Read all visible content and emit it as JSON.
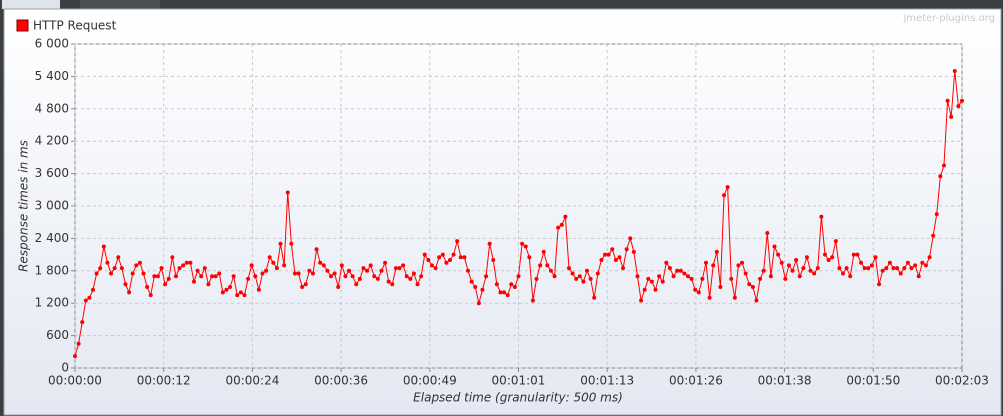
{
  "chart_data": {
    "type": "line",
    "legend": "HTTP Request",
    "watermark": "jmeter-plugins.org",
    "xlabel": "Elapsed time (granularity: 500 ms)",
    "ylabel": "Response times in ms",
    "grid": true,
    "legend_position": "top-left",
    "x": [
      0,
      0.5,
      1,
      1.5,
      2,
      2.5,
      3,
      3.5,
      4,
      4.5,
      5,
      5.5,
      6,
      6.5,
      7,
      7.5,
      8,
      8.5,
      9,
      9.5,
      10,
      10.5,
      11,
      11.5,
      12,
      12.5,
      13,
      13.5,
      14,
      14.5,
      15,
      15.5,
      16,
      16.5,
      17,
      17.5,
      18,
      18.5,
      19,
      19.5,
      20,
      20.5,
      21,
      21.5,
      22,
      22.5,
      23,
      23.5,
      24,
      24.5,
      25,
      25.5,
      26,
      26.5,
      27,
      27.5,
      28,
      28.5,
      29,
      29.5,
      30,
      30.5,
      31,
      31.5,
      32,
      32.5,
      33,
      33.5,
      34,
      34.5,
      35,
      35.5,
      36,
      36.5,
      37,
      37.5,
      38,
      38.5,
      39,
      39.5,
      40,
      40.5,
      41,
      41.5,
      42,
      42.5,
      43,
      43.5,
      44,
      44.5,
      45,
      45.5,
      46,
      46.5,
      47,
      47.5,
      48,
      48.5,
      49,
      49.5,
      50,
      50.5,
      51,
      51.5,
      52,
      52.5,
      53,
      53.5,
      54,
      54.5,
      55,
      55.5,
      56,
      56.5,
      57,
      57.5,
      58,
      58.5,
      59,
      59.5,
      60,
      60.5,
      61,
      61.5,
      62,
      62.5,
      63,
      63.5,
      64,
      64.5,
      65,
      65.5,
      66,
      66.5,
      67,
      67.5,
      68,
      68.5,
      69,
      69.5,
      70,
      70.5,
      71,
      71.5,
      72,
      72.5,
      73,
      73.5,
      74,
      74.5,
      75,
      75.5,
      76,
      76.5,
      77,
      77.5,
      78,
      78.5,
      79,
      79.5,
      80,
      80.5,
      81,
      81.5,
      82,
      82.5,
      83,
      83.5,
      84,
      84.5,
      85,
      85.5,
      86,
      86.5,
      87,
      87.5,
      88,
      88.5,
      89,
      89.5,
      90,
      90.5,
      91,
      91.5,
      92,
      92.5,
      93,
      93.5,
      94,
      94.5,
      95,
      95.5,
      96,
      96.5,
      97,
      97.5,
      98,
      98.5,
      99,
      99.5,
      100,
      100.5,
      101,
      101.5,
      102,
      102.5,
      103,
      103.5,
      104,
      104.5,
      105,
      105.5,
      106,
      106.5,
      107,
      107.5,
      108,
      108.5,
      109,
      109.5,
      110,
      110.5,
      111,
      111.5,
      112,
      112.5,
      113,
      113.5,
      114,
      114.5,
      115,
      115.5,
      116,
      116.5,
      117,
      117.5,
      118,
      118.5,
      119,
      119.5,
      120,
      120.5,
      121,
      121.5,
      122,
      122.5,
      123
    ],
    "series": [
      {
        "name": "HTTP Request",
        "color": "#ff0000",
        "values": [
          220,
          450,
          850,
          1250,
          1300,
          1450,
          1750,
          1850,
          2250,
          1950,
          1750,
          1850,
          2050,
          1850,
          1550,
          1400,
          1750,
          1900,
          1950,
          1750,
          1500,
          1350,
          1700,
          1700,
          1850,
          1550,
          1650,
          2050,
          1700,
          1850,
          1900,
          1950,
          1950,
          1600,
          1800,
          1700,
          1850,
          1550,
          1700,
          1700,
          1750,
          1400,
          1450,
          1500,
          1700,
          1350,
          1400,
          1350,
          1650,
          1900,
          1700,
          1450,
          1750,
          1800,
          2050,
          1950,
          1850,
          2300,
          1900,
          3250,
          2300,
          1750,
          1750,
          1500,
          1550,
          1800,
          1750,
          2200,
          1950,
          1900,
          1800,
          1700,
          1750,
          1500,
          1900,
          1700,
          1800,
          1700,
          1550,
          1650,
          1850,
          1800,
          1900,
          1700,
          1650,
          1800,
          1950,
          1600,
          1550,
          1850,
          1850,
          1900,
          1700,
          1650,
          1750,
          1550,
          1700,
          2100,
          2000,
          1900,
          1850,
          2050,
          2100,
          1950,
          2000,
          2100,
          2350,
          2050,
          2050,
          1800,
          1600,
          1500,
          1200,
          1450,
          1700,
          2300,
          2000,
          1550,
          1400,
          1400,
          1350,
          1550,
          1500,
          1700,
          2300,
          2250,
          2050,
          1250,
          1650,
          1900,
          2150,
          1900,
          1800,
          1700,
          2600,
          2650,
          2800,
          1850,
          1750,
          1650,
          1700,
          1600,
          1800,
          1650,
          1300,
          1750,
          2000,
          2100,
          2100,
          2200,
          2000,
          2050,
          1850,
          2200,
          2400,
          2150,
          1700,
          1250,
          1450,
          1650,
          1600,
          1450,
          1700,
          1600,
          1950,
          1850,
          1700,
          1800,
          1800,
          1750,
          1700,
          1650,
          1450,
          1400,
          1650,
          1950,
          1300,
          1900,
          2150,
          1500,
          3200,
          3350,
          1650,
          1300,
          1900,
          1950,
          1750,
          1550,
          1500,
          1250,
          1650,
          1800,
          2500,
          1700,
          2250,
          2100,
          1950,
          1650,
          1900,
          1800,
          2000,
          1700,
          1850,
          2050,
          1800,
          1750,
          1850,
          2800,
          2100,
          2000,
          2050,
          2350,
          1850,
          1750,
          1850,
          1700,
          2100,
          2100,
          1950,
          1850,
          1850,
          1900,
          2050,
          1550,
          1800,
          1850,
          1950,
          1850,
          1850,
          1750,
          1850,
          1950,
          1850,
          1900,
          1700,
          1950,
          1900,
          2050,
          2450,
          2850,
          3550,
          3750,
          4950,
          4650,
          5500,
          4850,
          4950
        ]
      }
    ],
    "xlim": [
      0,
      123
    ],
    "xticks": [
      {
        "value": 0,
        "label": "00:00:00"
      },
      {
        "value": 12.3,
        "label": "00:00:12"
      },
      {
        "value": 24.6,
        "label": "00:00:24"
      },
      {
        "value": 36.9,
        "label": "00:00:36"
      },
      {
        "value": 49.2,
        "label": "00:00:49"
      },
      {
        "value": 61.5,
        "label": "00:01:01"
      },
      {
        "value": 73.8,
        "label": "00:01:13"
      },
      {
        "value": 86.1,
        "label": "00:01:26"
      },
      {
        "value": 98.4,
        "label": "00:01:38"
      },
      {
        "value": 110.7,
        "label": "00:01:50"
      },
      {
        "value": 123,
        "label": "00:02:03"
      }
    ],
    "ylim": [
      0,
      6000
    ],
    "yticks": [
      0,
      600,
      {
        "value": 1200,
        "label": "1 200"
      },
      {
        "value": 1800,
        "label": "1 800"
      },
      {
        "value": 2400,
        "label": "2 400"
      },
      {
        "value": 3000,
        "label": "3 000"
      },
      {
        "value": 3600,
        "label": "3 600"
      },
      {
        "value": 4200,
        "label": "4 200"
      },
      {
        "value": 4800,
        "label": "4 800"
      },
      {
        "value": 5400,
        "label": "5 400"
      },
      {
        "value": 6000,
        "label": "6 000"
      }
    ]
  }
}
